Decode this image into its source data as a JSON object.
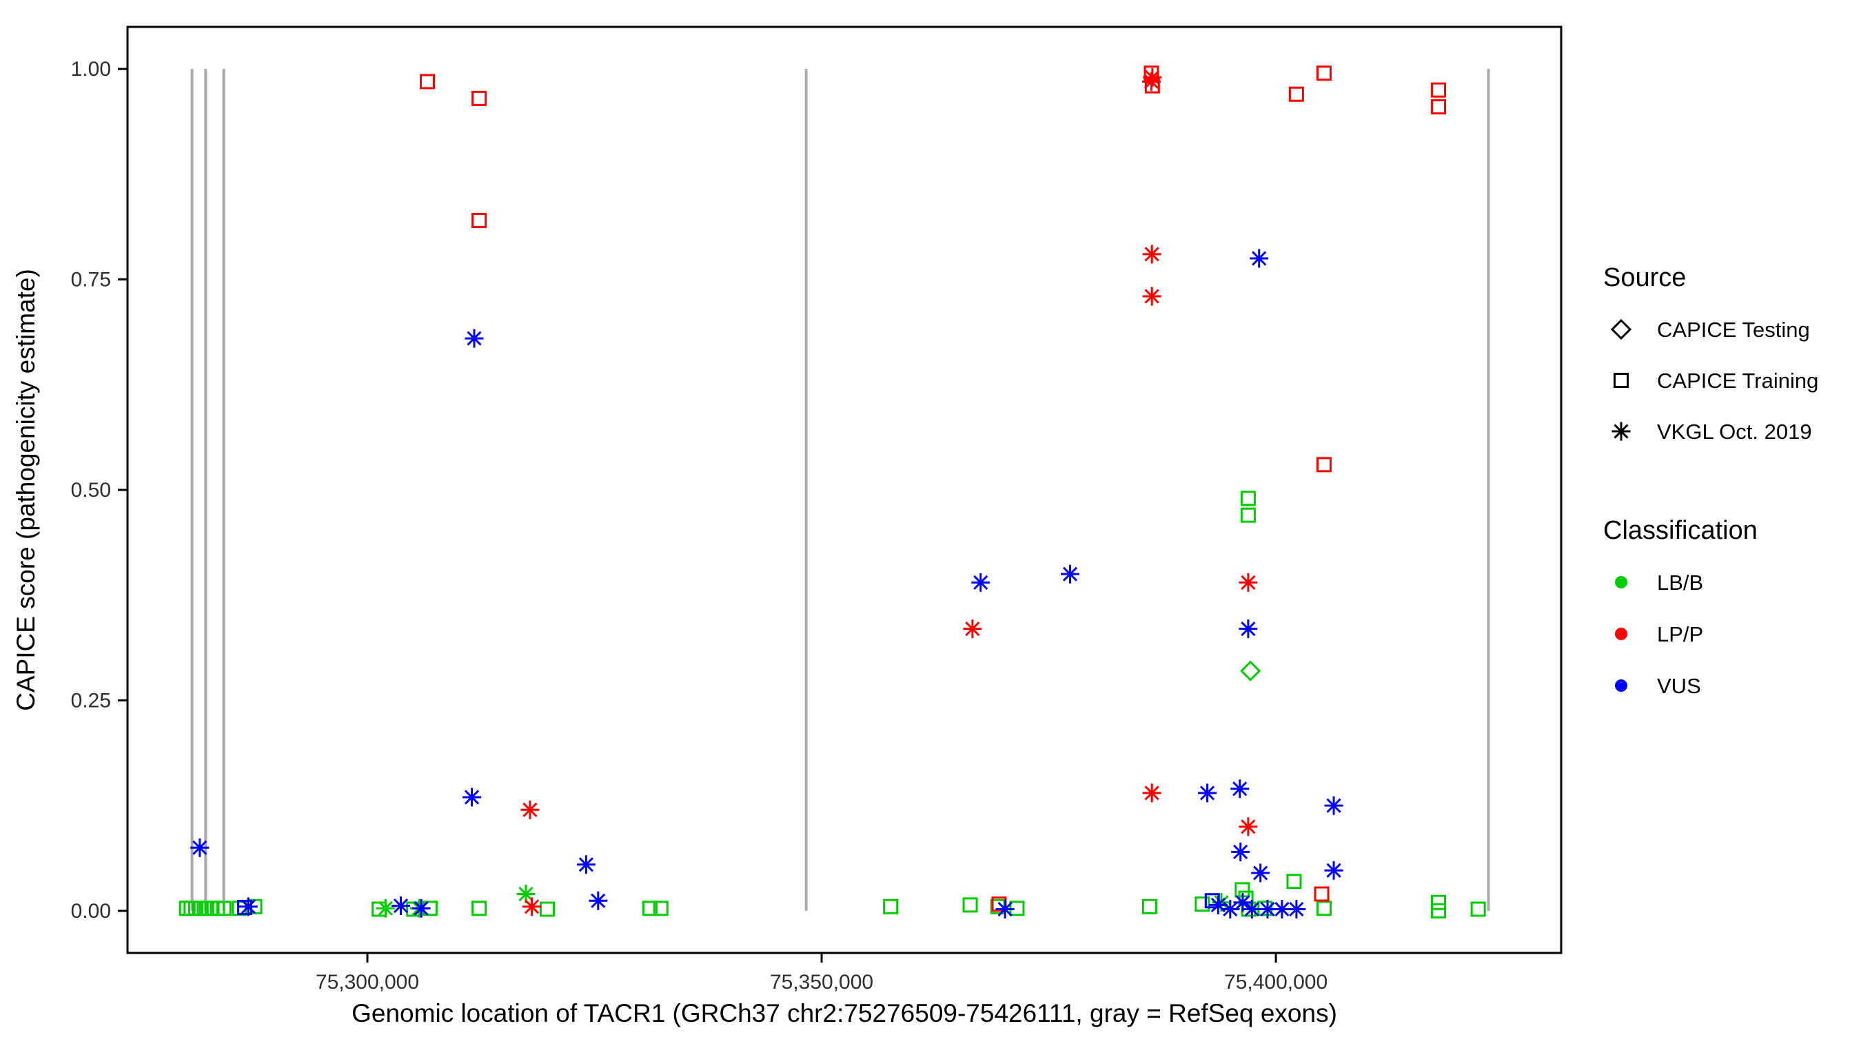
{
  "chart_data": {
    "type": "scatter",
    "title": "",
    "xlabel": "Genomic location of TACR1 (GRCh37 chr2:75276509-75426111, gray = RefSeq exons)",
    "ylabel": "CAPICE score (pathogenicity estimate)",
    "xlim": [
      75273600,
      75431400
    ],
    "ylim": [
      -0.05,
      1.05
    ],
    "grid": "off",
    "legend_position": "right",
    "x_ticks": [
      {
        "value": 75300000,
        "label": "75,300,000"
      },
      {
        "value": 75350000,
        "label": "75,350,000"
      },
      {
        "value": 75400000,
        "label": "75,400,000"
      }
    ],
    "y_ticks": [
      {
        "value": 0.0,
        "label": "0.00"
      },
      {
        "value": 0.25,
        "label": "0.25"
      },
      {
        "value": 0.5,
        "label": "0.50"
      },
      {
        "value": 0.75,
        "label": "0.75"
      },
      {
        "value": 1.0,
        "label": "1.00"
      }
    ],
    "exons": {
      "color": "#A9A9A9",
      "positions": [
        75280700,
        75282200,
        75284200,
        75348300,
        75423400
      ]
    },
    "legend": {
      "source_title": "Source",
      "source": [
        {
          "label": "CAPICE Testing",
          "shape": "diamond"
        },
        {
          "label": "CAPICE Training",
          "shape": "square"
        },
        {
          "label": "VKGL Oct. 2019",
          "shape": "asterisk"
        }
      ],
      "classification_title": "Classification",
      "classification": [
        {
          "label": "LB/B",
          "color": "#00CD00"
        },
        {
          "label": "LP/P",
          "color": "#FF0000"
        },
        {
          "label": "VUS",
          "color": "#0000FF"
        }
      ]
    },
    "series": [
      {
        "source": "CAPICE Testing",
        "classification": "LB/B",
        "shape": "diamond",
        "color": "#00CD00",
        "points": [
          [
            75397200,
            0.285
          ]
        ]
      },
      {
        "source": "CAPICE Training",
        "classification": "LB/B",
        "shape": "square",
        "color": "#00CD00",
        "points": [
          [
            75396950,
            0.49
          ],
          [
            75396950,
            0.47
          ],
          [
            75402000,
            0.035
          ],
          [
            75396300,
            0.025
          ],
          [
            75280100,
            0.003
          ],
          [
            75280600,
            0.003
          ],
          [
            75281100,
            0.003
          ],
          [
            75281700,
            0.003
          ],
          [
            75282300,
            0.003
          ],
          [
            75282900,
            0.003
          ],
          [
            75283500,
            0.003
          ],
          [
            75284200,
            0.003
          ],
          [
            75285900,
            0.003
          ],
          [
            75287600,
            0.005
          ],
          [
            75301300,
            0.002
          ],
          [
            75305100,
            0.002
          ],
          [
            75306900,
            0.003
          ],
          [
            75312300,
            0.003
          ],
          [
            75319800,
            0.002
          ],
          [
            75331100,
            0.003
          ],
          [
            75332300,
            0.003
          ],
          [
            75357600,
            0.005
          ],
          [
            75366350,
            0.007
          ],
          [
            75369400,
            0.005
          ],
          [
            75371500,
            0.003
          ],
          [
            75386100,
            0.005
          ],
          [
            75391900,
            0.008
          ],
          [
            75396700,
            0.015
          ],
          [
            75397000,
            0.002
          ],
          [
            75398800,
            0.003
          ],
          [
            75405300,
            0.003
          ],
          [
            75417900,
            0.01
          ],
          [
            75417900,
            0.0
          ],
          [
            75422270,
            0.002
          ]
        ]
      },
      {
        "source": "VKGL Oct. 2019",
        "classification": "LB/B",
        "shape": "asterisk",
        "color": "#00CD00",
        "points": [
          [
            75317450,
            0.02
          ],
          [
            75302000,
            0.003
          ],
          [
            75305700,
            0.003
          ],
          [
            75394000,
            0.01
          ]
        ]
      },
      {
        "source": "CAPICE Training",
        "classification": "LP/P",
        "shape": "square",
        "color": "#FF0000",
        "points": [
          [
            75306600,
            0.985
          ],
          [
            75312300,
            0.965
          ],
          [
            75312300,
            0.82
          ],
          [
            75386300,
            0.995
          ],
          [
            75386400,
            0.98
          ],
          [
            75402260,
            0.97
          ],
          [
            75405300,
            0.995
          ],
          [
            75405300,
            0.53
          ],
          [
            75417900,
            0.975
          ],
          [
            75417900,
            0.955
          ],
          [
            75405040,
            0.02
          ],
          [
            75369530,
            0.008
          ]
        ]
      },
      {
        "source": "VKGL Oct. 2019",
        "classification": "LP/P",
        "shape": "asterisk",
        "color": "#FF0000",
        "points": [
          [
            75386400,
            0.99
          ],
          [
            75386300,
            0.985
          ],
          [
            75386350,
            0.78
          ],
          [
            75386350,
            0.73
          ],
          [
            75396950,
            0.39
          ],
          [
            75366600,
            0.335
          ],
          [
            75386350,
            0.14
          ],
          [
            75396950,
            0.1
          ],
          [
            75317900,
            0.12
          ],
          [
            75318100,
            0.005
          ]
        ]
      },
      {
        "source": "CAPICE Training",
        "classification": "VUS",
        "shape": "square",
        "color": "#0000FF",
        "points": [
          [
            75393000,
            0.012
          ],
          [
            75286500,
            0.004
          ]
        ]
      },
      {
        "source": "VKGL Oct. 2019",
        "classification": "VUS",
        "shape": "asterisk",
        "color": "#0000FF",
        "points": [
          [
            75398150,
            0.775
          ],
          [
            75311760,
            0.68
          ],
          [
            75377350,
            0.4
          ],
          [
            75367500,
            0.39
          ],
          [
            75396950,
            0.335
          ],
          [
            75396030,
            0.145
          ],
          [
            75392450,
            0.14
          ],
          [
            75311500,
            0.135
          ],
          [
            75406370,
            0.125
          ],
          [
            75281550,
            0.075
          ],
          [
            75396100,
            0.07
          ],
          [
            75324080,
            0.055
          ],
          [
            75398300,
            0.045
          ],
          [
            75406370,
            0.048
          ],
          [
            75325400,
            0.012
          ],
          [
            75286900,
            0.005
          ],
          [
            75303680,
            0.006
          ],
          [
            75305930,
            0.003
          ],
          [
            75370190,
            0.002
          ],
          [
            75393650,
            0.007
          ],
          [
            75394970,
            0.002
          ],
          [
            75396350,
            0.01
          ],
          [
            75397360,
            0.002
          ],
          [
            75399080,
            0.002
          ],
          [
            75400670,
            0.002
          ],
          [
            75402260,
            0.002
          ]
        ]
      }
    ]
  }
}
